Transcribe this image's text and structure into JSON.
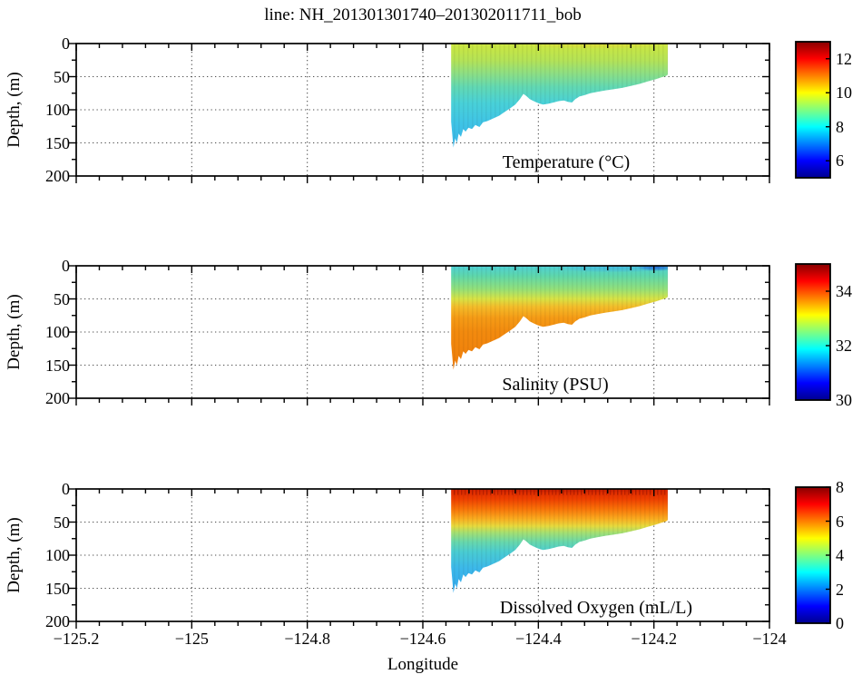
{
  "title": "line: NH_201301301740–201302011711_bob",
  "axes": {
    "xlabel": "Longitude",
    "ylabel": "Depth, (m)",
    "xlim": [
      -125.2,
      -124
    ],
    "ylim": [
      0,
      200
    ],
    "x_ticks": [
      -125.2,
      -125,
      -124.8,
      -124.6,
      -124.4,
      -124.2,
      -124
    ],
    "x_tick_labels": [
      "−125.2",
      "−125",
      "−124.8",
      "−124.6",
      "−124.4",
      "−124.2",
      "−124"
    ],
    "x_minor_step": 0.04,
    "y_ticks": [
      0,
      50,
      100,
      150,
      200
    ],
    "y_tick_labels": [
      "0",
      "50",
      "100",
      "150",
      "200"
    ],
    "y_minor_step": 25,
    "grid_style": "dotted"
  },
  "style": {
    "background": "#ffffff",
    "axis_color": "#000000",
    "grid_color": "#4d4d4d",
    "text_color": "#000000",
    "colormap": "jet",
    "jet_stops": [
      {
        "at": 0.0,
        "color": "#000090"
      },
      {
        "at": 0.125,
        "color": "#0000ff"
      },
      {
        "at": 0.375,
        "color": "#00ffff"
      },
      {
        "at": 0.625,
        "color": "#ffff00"
      },
      {
        "at": 0.875,
        "color": "#ff0000"
      },
      {
        "at": 1.0,
        "color": "#870000"
      }
    ]
  },
  "section": {
    "x_start": -124.551,
    "x_end": -124.176,
    "max_depth_m": 157,
    "boundary_lon_depth": [
      [
        -124.551,
        0
      ],
      [
        -124.551,
        118
      ],
      [
        -124.549,
        138
      ],
      [
        -124.547,
        157
      ],
      [
        -124.544,
        143
      ],
      [
        -124.541,
        150
      ],
      [
        -124.538,
        136
      ],
      [
        -124.534,
        141
      ],
      [
        -124.53,
        129
      ],
      [
        -124.526,
        133
      ],
      [
        -124.521,
        127
      ],
      [
        -124.515,
        129
      ],
      [
        -124.509,
        123
      ],
      [
        -124.502,
        126
      ],
      [
        -124.496,
        119
      ],
      [
        -124.488,
        117
      ],
      [
        -124.478,
        113
      ],
      [
        -124.468,
        109
      ],
      [
        -124.458,
        103
      ],
      [
        -124.449,
        98
      ],
      [
        -124.44,
        92
      ],
      [
        -124.432,
        84
      ],
      [
        -124.426,
        76
      ],
      [
        -124.421,
        79
      ],
      [
        -124.415,
        84
      ],
      [
        -124.408,
        87
      ],
      [
        -124.4,
        90
      ],
      [
        -124.392,
        92
      ],
      [
        -124.383,
        91
      ],
      [
        -124.374,
        89
      ],
      [
        -124.365,
        87
      ],
      [
        -124.356,
        86
      ],
      [
        -124.349,
        88
      ],
      [
        -124.342,
        89
      ],
      [
        -124.336,
        84
      ],
      [
        -124.329,
        80
      ],
      [
        -124.32,
        78
      ],
      [
        -124.31,
        75
      ],
      [
        -124.298,
        73
      ],
      [
        -124.285,
        71
      ],
      [
        -124.27,
        69
      ],
      [
        -124.255,
        67
      ],
      [
        -124.24,
        64
      ],
      [
        -124.225,
        61
      ],
      [
        -124.21,
        57
      ],
      [
        -124.197,
        54
      ],
      [
        -124.187,
        51
      ],
      [
        -124.179,
        49
      ],
      [
        -124.176,
        47
      ],
      [
        -124.176,
        0
      ]
    ]
  },
  "chart_data": [
    {
      "type": "heatmap",
      "variable": "Temperature",
      "units": "°C",
      "caption": "Temperature (°C)",
      "colorbar": {
        "clim": [
          5,
          13
        ],
        "tick_values": [
          12,
          10,
          8,
          6
        ],
        "tick_labels": [
          "12",
          "10",
          "8",
          "6"
        ]
      },
      "depth_profile": [
        {
          "depth_m": 0,
          "value": 10.2,
          "color": "#cde73f"
        },
        {
          "depth_m": 25,
          "value": 9.9,
          "color": "#b5e356"
        },
        {
          "depth_m": 45,
          "value": 9.4,
          "color": "#8edf84"
        },
        {
          "depth_m": 65,
          "value": 8.7,
          "color": "#63d9b2"
        },
        {
          "depth_m": 90,
          "value": 8.1,
          "color": "#49d1d8"
        },
        {
          "depth_m": 120,
          "value": 7.7,
          "color": "#3fc4e6"
        },
        {
          "depth_m": 157,
          "value": 7.3,
          "color": "#3ab6ea"
        }
      ],
      "surface_features": [
        {
          "description": "slightly warmer surface band mid-shelf",
          "lon_center": -124.3,
          "depth_center_m": 2,
          "lon_radius": 0.13,
          "depth_radius_m": 6,
          "value": 10.8,
          "color": "#e4d234",
          "opacity": 0.5
        }
      ]
    },
    {
      "type": "heatmap",
      "variable": "Salinity",
      "units": "PSU",
      "caption": "Salinity (PSU)",
      "colorbar": {
        "clim": [
          30,
          35
        ],
        "tick_values": [
          34,
          32,
          30
        ],
        "tick_labels": [
          "34",
          "32",
          "30"
        ]
      },
      "depth_profile": [
        {
          "depth_m": 0,
          "value": 31.8,
          "color": "#4ecfd6"
        },
        {
          "depth_m": 15,
          "value": 32.0,
          "color": "#5ed7ac"
        },
        {
          "depth_m": 35,
          "value": 32.5,
          "color": "#93e07a"
        },
        {
          "depth_m": 50,
          "value": 33.0,
          "color": "#d8e345"
        },
        {
          "depth_m": 62,
          "value": 33.5,
          "color": "#f4bc2a"
        },
        {
          "depth_m": 78,
          "value": 33.8,
          "color": "#f59c16"
        },
        {
          "depth_m": 100,
          "value": 34.0,
          "color": "#f28a0e"
        },
        {
          "depth_m": 157,
          "value": 34.2,
          "color": "#ef7d0a"
        }
      ],
      "surface_features": [
        {
          "description": "fresher surface layer over inner shelf",
          "lon_center": -124.27,
          "depth_center_m": 3,
          "lon_radius": 0.1,
          "depth_radius_m": 7,
          "value": 31.4,
          "color": "#38a8e8",
          "opacity": 0.5
        },
        {
          "description": "low-salinity plume near coast",
          "lon_center": -124.195,
          "depth_center_m": 2,
          "lon_radius": 0.035,
          "depth_radius_m": 6,
          "value": 30.6,
          "color": "#1e5ed9",
          "opacity": 0.85
        }
      ]
    },
    {
      "type": "heatmap",
      "variable": "Dissolved Oxygen",
      "units": "mL/L",
      "caption": "Dissolved Oxygen (mL/L)",
      "colorbar": {
        "clim": [
          0,
          8
        ],
        "tick_values": [
          8,
          6,
          4,
          2,
          0
        ],
        "tick_labels": [
          "8",
          "6",
          "4",
          "2",
          "0"
        ]
      },
      "depth_profile": [
        {
          "depth_m": 0,
          "value": 7.3,
          "color": "#da2500"
        },
        {
          "depth_m": 15,
          "value": 7.0,
          "color": "#ee3e00"
        },
        {
          "depth_m": 30,
          "value": 6.4,
          "color": "#f87208"
        },
        {
          "depth_m": 45,
          "value": 5.7,
          "color": "#f9ac20"
        },
        {
          "depth_m": 56,
          "value": 5.0,
          "color": "#e6da3e"
        },
        {
          "depth_m": 66,
          "value": 4.3,
          "color": "#a5e072"
        },
        {
          "depth_m": 80,
          "value": 3.5,
          "color": "#68d8ac"
        },
        {
          "depth_m": 95,
          "value": 3.0,
          "color": "#4accd2"
        },
        {
          "depth_m": 120,
          "value": 2.6,
          "color": "#3cb8ea"
        },
        {
          "depth_m": 157,
          "value": 2.2,
          "color": "#33a9ee"
        }
      ],
      "surface_streaks": {
        "color": "#8f0f00",
        "opacity": 0.5,
        "depth_extent_m": 9
      },
      "surface_features": [
        {
          "description": "high-oxygen surface band",
          "lon_center": -124.36,
          "depth_center_m": 1,
          "lon_radius": 0.2,
          "depth_radius_m": 5,
          "value": 7.6,
          "color": "#a51200",
          "opacity": 0.35
        }
      ]
    }
  ]
}
